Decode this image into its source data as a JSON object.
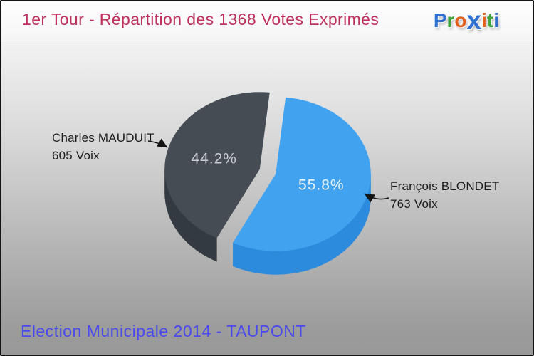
{
  "header": {
    "title": "1er Tour - Répartition des 1368 Votes Exprimés",
    "logo": {
      "name": "Proxiti",
      "letters": [
        {
          "ch": "P",
          "color": "#2e6fd2",
          "big": false
        },
        {
          "ch": "r",
          "color": "#3da43c",
          "big": false
        },
        {
          "ch": "o",
          "color": "#e2601e",
          "big": false
        },
        {
          "ch": "x",
          "color": "#2e6fd2",
          "big": true
        },
        {
          "ch": "i",
          "color": "#e2601e",
          "big": false
        },
        {
          "ch": "t",
          "color": "#3da43c",
          "big": false
        },
        {
          "ch": "i",
          "color": "#2e6fd2",
          "big": false
        }
      ]
    }
  },
  "footer": {
    "caption": "Election Municipale 2014 - TAUPONT"
  },
  "chart_data": {
    "type": "pie",
    "style": "3d-exploded",
    "title": "1er Tour - Répartition des 1368 Votes Exprimés",
    "total_votes": 1368,
    "unit": "Voix",
    "start_angle_deg": 84,
    "direction": "clockwise",
    "slices": [
      {
        "name": "François BLONDET",
        "votes": 763,
        "pct": 55.8,
        "pct_label": "55.8%",
        "votes_label": "763 Voix",
        "color": "#41a3f0",
        "side_color": "#2d8bdd",
        "pct_color": "#e9f4fd",
        "label_side": "right"
      },
      {
        "name": "Charles MAUDUIT",
        "votes": 605,
        "pct": 44.2,
        "pct_label": "44.2%",
        "votes_label": "605 Voix",
        "color": "#454c54",
        "side_color": "#333a41",
        "pct_color": "#c9ced3",
        "label_side": "left"
      }
    ]
  }
}
